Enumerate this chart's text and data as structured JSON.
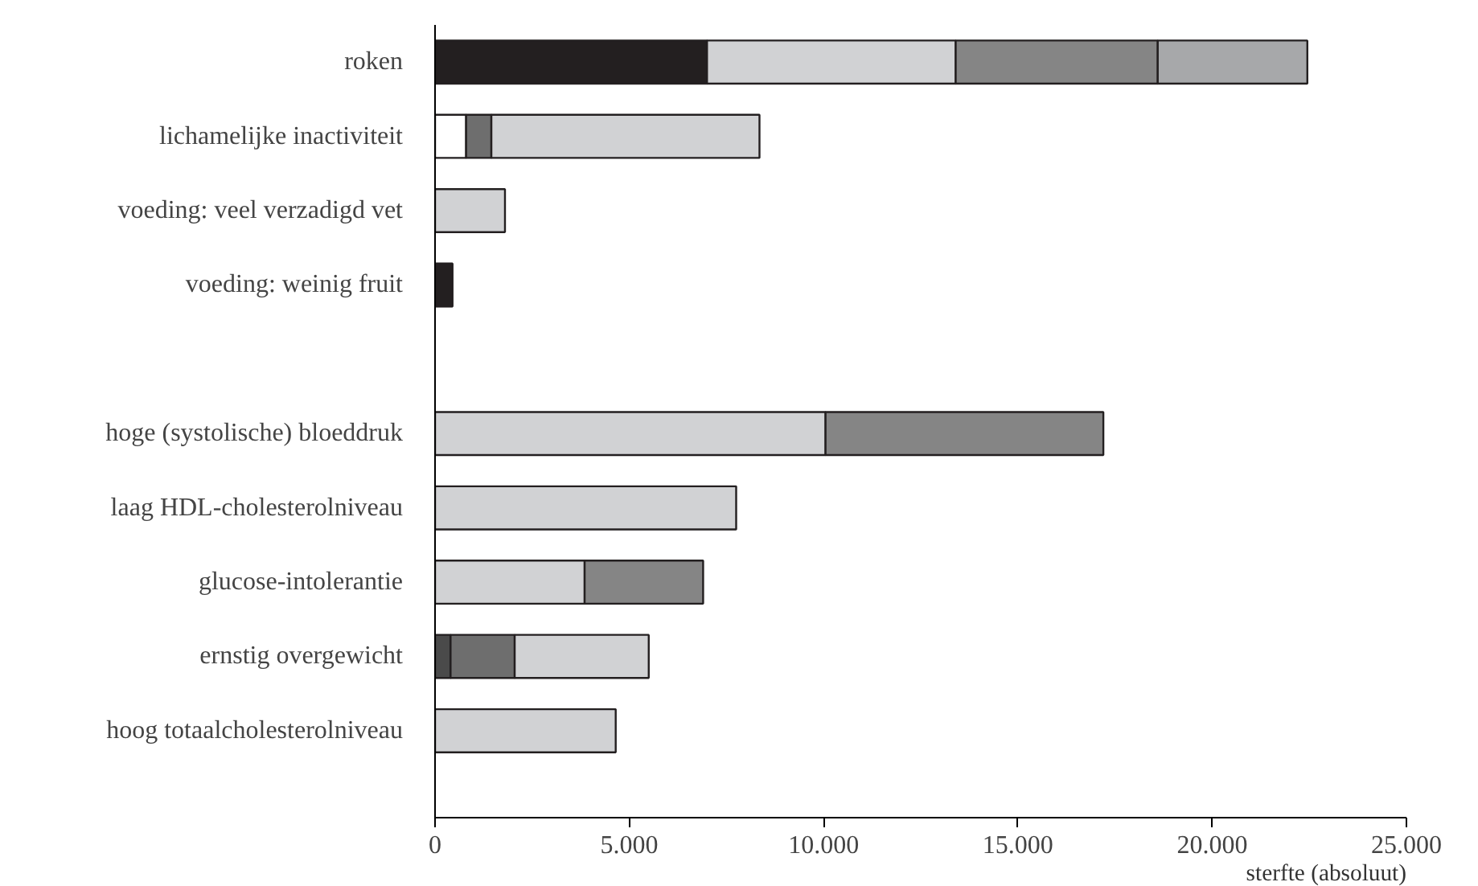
{
  "chart_data": {
    "type": "bar",
    "orientation": "horizontal",
    "stacked": true,
    "categories": [
      "roken",
      "lichamelijke inactiviteit",
      "voeding: veel verzadigd vet",
      "voeding: weinig fruit",
      null,
      "hoge (systolische) bloeddruk",
      "laag HDL-cholesterolniveau",
      "glucose-intolerantie",
      "ernstig overgewicht",
      "hoog totaalcholesterolniveau"
    ],
    "series": [
      {
        "color": "#231f20",
        "values": [
          7000,
          0,
          0,
          450,
          0,
          0,
          0,
          0,
          0,
          0
        ]
      },
      {
        "color": "#ffffff",
        "values": [
          0,
          800,
          0,
          0,
          0,
          0,
          0,
          0,
          0,
          0
        ]
      },
      {
        "color": "#4a4a4a",
        "values": [
          0,
          0,
          0,
          0,
          0,
          0,
          0,
          0,
          400,
          0
        ]
      },
      {
        "color": "#6e6e6e",
        "values": [
          0,
          650,
          0,
          0,
          0,
          0,
          0,
          0,
          1650,
          0
        ]
      },
      {
        "color": "#d1d2d4",
        "values": [
          6400,
          6900,
          1800,
          0,
          0,
          10050,
          7750,
          3850,
          3450,
          4650
        ]
      },
      {
        "color": "#858585",
        "values": [
          5200,
          0,
          0,
          0,
          0,
          7150,
          0,
          3050,
          0,
          0
        ]
      },
      {
        "color": "#a7a8aa",
        "values": [
          3850,
          0,
          0,
          0,
          0,
          0,
          0,
          0,
          0,
          0
        ]
      }
    ],
    "xlim": [
      0,
      25000
    ],
    "xticks": [
      0,
      {
        "value": 5000,
        "label": "5.000"
      },
      {
        "value": 10000,
        "label": "10.000"
      },
      {
        "value": 15000,
        "label": "15.000"
      },
      {
        "value": 20000,
        "label": "20.000"
      },
      {
        "value": 25000,
        "label": "25.000"
      }
    ],
    "xlabel": "sterfte (absoluut)",
    "grid": false
  }
}
